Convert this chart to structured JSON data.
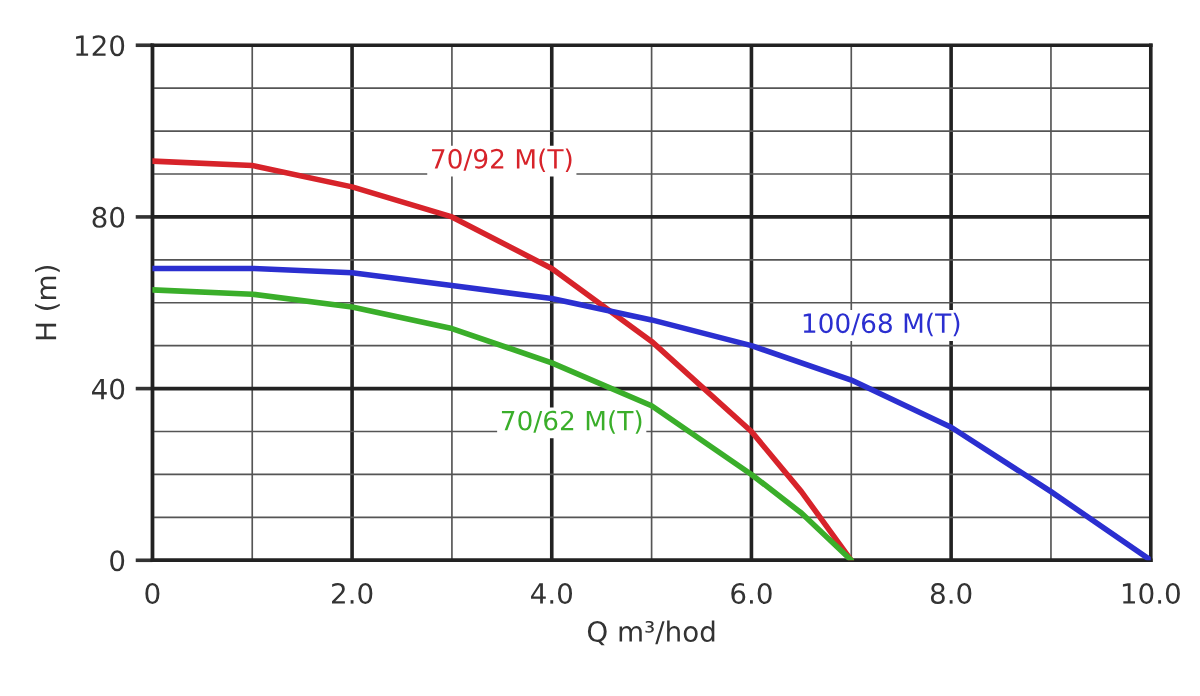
{
  "chart_data": {
    "type": "line",
    "xlabel": "Q m³/hod",
    "ylabel": "H (m)",
    "xlim": [
      0,
      10
    ],
    "ylim": [
      0,
      120
    ],
    "xticks": [
      {
        "value": 0,
        "label": "0"
      },
      {
        "value": 2,
        "label": "2.0"
      },
      {
        "value": 4,
        "label": "4.0"
      },
      {
        "value": 6,
        "label": "6.0"
      },
      {
        "value": 8,
        "label": "8.0"
      },
      {
        "value": 10,
        "label": "10.0"
      }
    ],
    "yticks": [
      0,
      40,
      80,
      120
    ],
    "grid": true,
    "legend": false,
    "marker": "none",
    "line_style": "solid",
    "series": [
      {
        "name": "70/92 M(T)",
        "color": "#d7232a",
        "x": [
          0,
          1,
          2,
          3,
          4,
          5,
          6,
          6.5,
          7
        ],
        "values": [
          93,
          92,
          87,
          80,
          68,
          51,
          30,
          16,
          0
        ]
      },
      {
        "name": "100/68 M(T)",
        "color": "#2b2fd0",
        "x": [
          0,
          1,
          2,
          3,
          4,
          5,
          6,
          7,
          8,
          9,
          10
        ],
        "values": [
          68,
          68,
          67,
          64,
          61,
          56,
          50,
          42,
          31,
          16,
          0
        ]
      },
      {
        "name": "70/62 M(T)",
        "color": "#3aae2a",
        "x": [
          0,
          1,
          2,
          3,
          4,
          5,
          6,
          6.5,
          7
        ],
        "values": [
          63,
          62,
          59,
          54,
          46,
          36,
          20,
          11,
          0
        ]
      }
    ]
  }
}
